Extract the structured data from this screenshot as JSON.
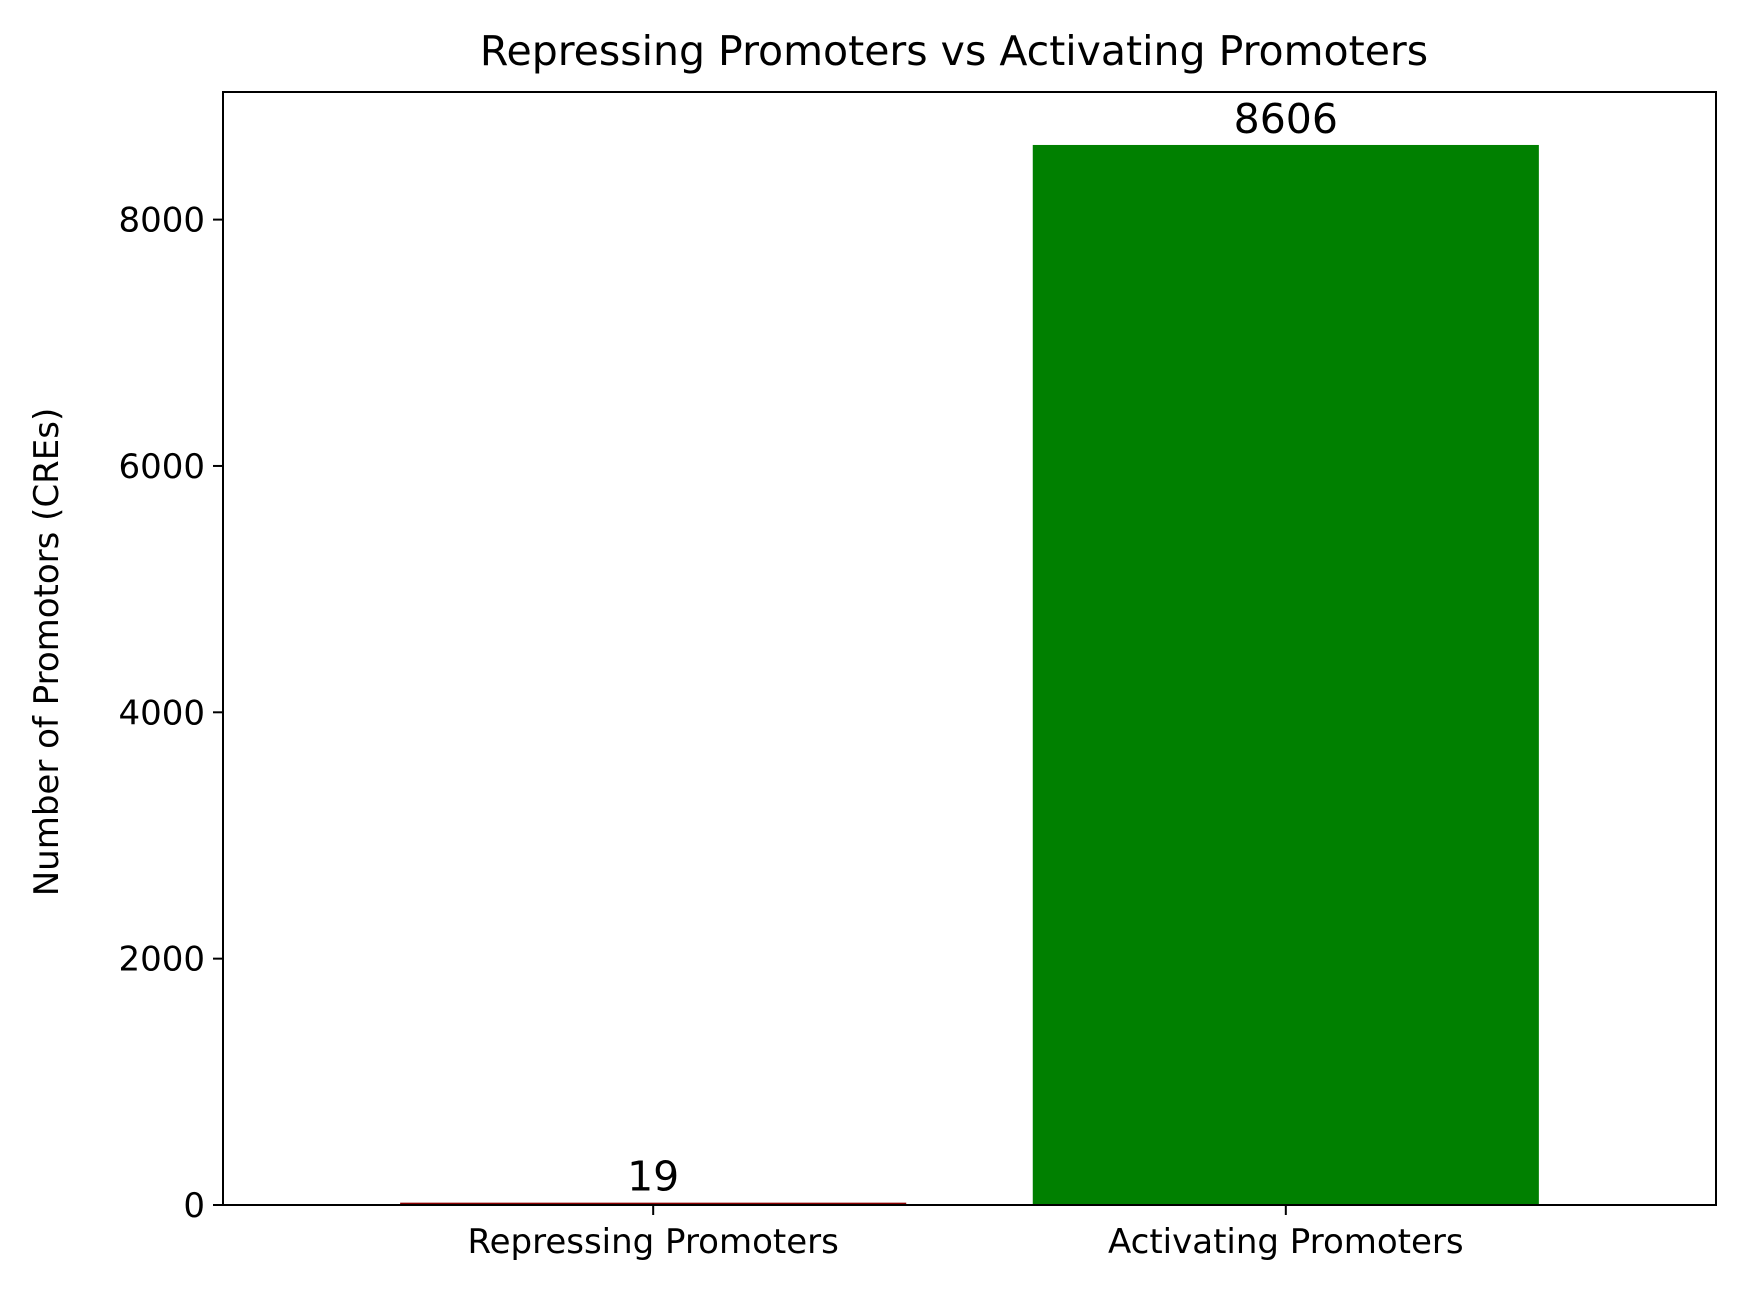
{
  "chart_data": {
    "type": "bar",
    "title": "Repressing Promoters vs Activating Promoters",
    "xlabel": "",
    "ylabel": "Number of Promotors (CREs)",
    "categories": [
      "Repressing Promoters",
      "Activating Promoters"
    ],
    "values": [
      19,
      8606
    ],
    "data_labels": [
      "19",
      "8606"
    ],
    "bar_colors": [
      "#8b0000",
      "#008000"
    ],
    "ylim": [
      0,
      9036
    ],
    "yticks": [
      0,
      2000,
      4000,
      6000,
      8000
    ],
    "ytick_labels": [
      "0",
      "2000",
      "4000",
      "6000",
      "8000"
    ],
    "grid": false,
    "legend": false
  }
}
